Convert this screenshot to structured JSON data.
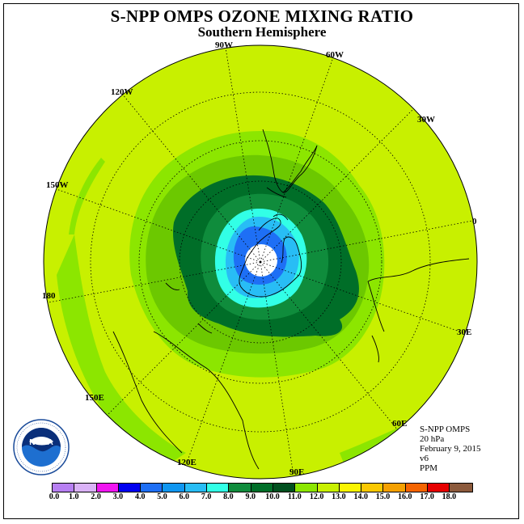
{
  "title": "S-NPP OMPS OZONE MIXING RATIO",
  "subtitle": "Southern Hemisphere",
  "longitude_labels": [
    "90W",
    "60W",
    "30W",
    "0",
    "30E",
    "60E",
    "90E",
    "120E",
    "150E",
    "180",
    "150W",
    "120W"
  ],
  "info": {
    "product": "S-NPP OMPS",
    "level": "20 hPa",
    "date": "February 9, 2015",
    "version": "v6",
    "units": "PPM"
  },
  "logo": {
    "text": "NOAA",
    "icon": "noaa-logo"
  },
  "colorbar": {
    "ticks": [
      "0.0",
      "1.0",
      "2.0",
      "3.0",
      "4.0",
      "5.0",
      "6.0",
      "7.0",
      "8.0",
      "9.0",
      "10.0",
      "11.0",
      "12.0",
      "13.0",
      "14.0",
      "15.0",
      "16.0",
      "17.0",
      "18.0"
    ],
    "colors": [
      "#b77ff2",
      "#dab2f7",
      "#f016f0",
      "#0000f0",
      "#1e6ff5",
      "#0f96f0",
      "#28bdf5",
      "#32ffe6",
      "#0f8c3c",
      "#006e28",
      "#004f1e",
      "#8ce600",
      "#c8f000",
      "#faf500",
      "#fac800",
      "#f5a000",
      "#f56400",
      "#e60000",
      "#8c5a3c"
    ]
  }
}
